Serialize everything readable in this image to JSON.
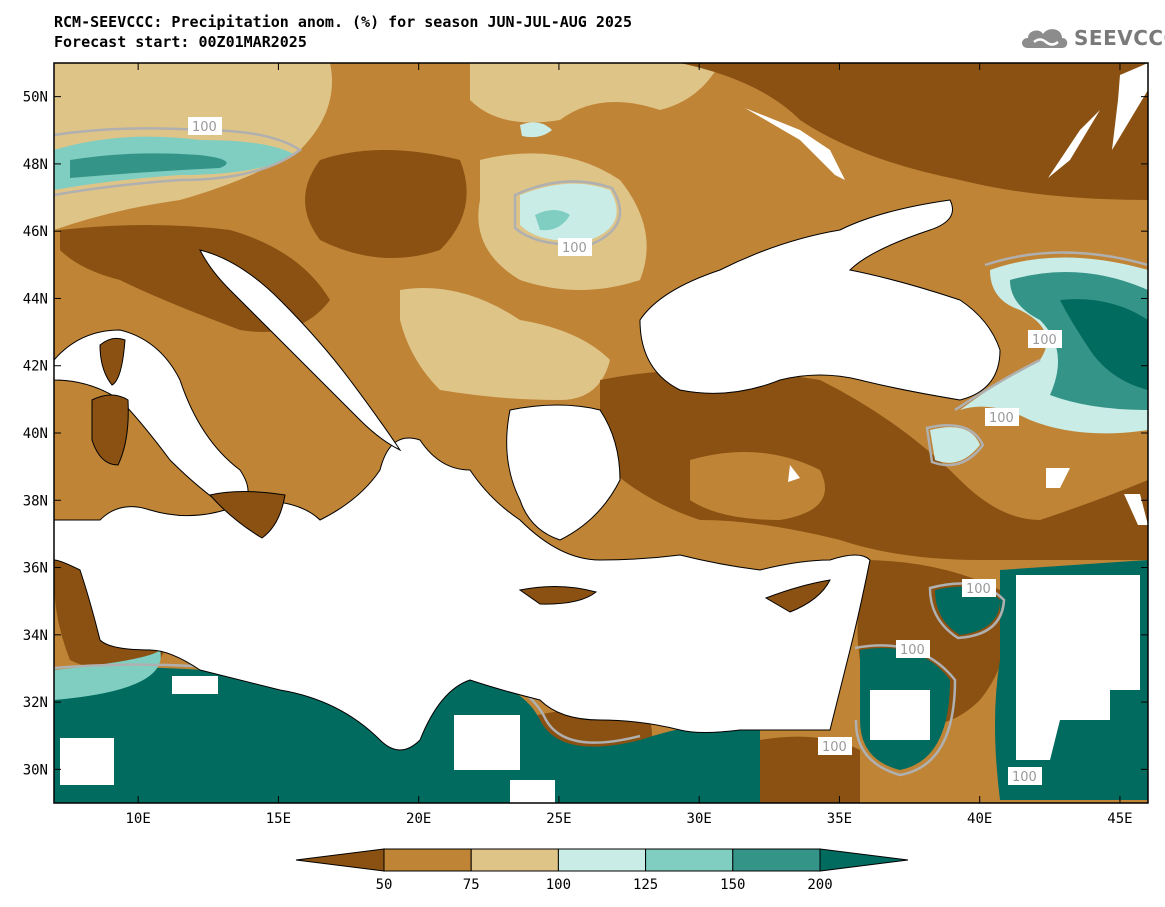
{
  "header": {
    "title_line1": "RCM-SEEVCCC: Precipitation anom. (%) for season JUN-JUL-AUG 2025",
    "title_line2": "Forecast start: 00Z01MAR2025"
  },
  "logo": {
    "text": "SEEVCCC",
    "icon": "cloud-icon"
  },
  "map": {
    "lon_range": [
      7,
      46
    ],
    "lat_range": [
      29,
      51
    ],
    "lon_ticks": [
      "10E",
      "15E",
      "20E",
      "25E",
      "30E",
      "35E",
      "40E",
      "45E"
    ],
    "lat_ticks": [
      "50N",
      "48N",
      "46N",
      "44N",
      "42N",
      "40N",
      "38N",
      "36N",
      "34N",
      "32N",
      "30N"
    ],
    "contour_labels": [
      "100",
      "100",
      "100",
      "100",
      "100",
      "100",
      "100",
      "100"
    ]
  },
  "colorbar": {
    "labels": [
      "50",
      "75",
      "100",
      "125",
      "150",
      "200"
    ],
    "colors": [
      "#8a5112",
      "#bf8436",
      "#dfc487",
      "#c9ece6",
      "#7fcec1",
      "#359488",
      "#006b5e"
    ]
  }
}
